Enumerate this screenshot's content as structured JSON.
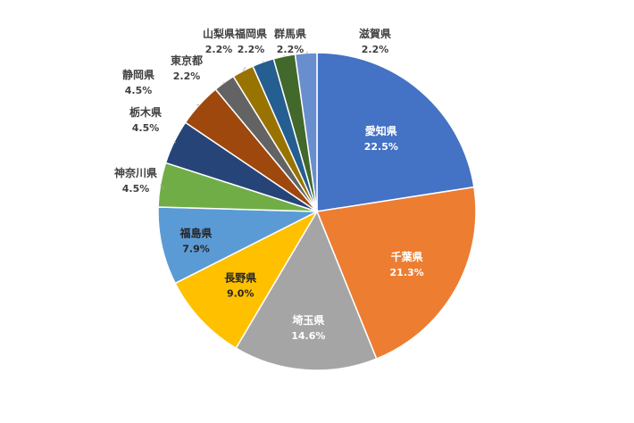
{
  "chart_data": {
    "type": "pie",
    "start_angle_deg": 0,
    "direction": "clockwise",
    "slices": [
      {
        "label": "愛知県",
        "value": 22.5,
        "display": "22.5%",
        "color": "#4472C4",
        "label_style": "inside-white"
      },
      {
        "label": "千葉県",
        "value": 21.3,
        "display": "21.3%",
        "color": "#ED7D31",
        "label_style": "inside-white"
      },
      {
        "label": "埼玉県",
        "value": 14.6,
        "display": "14.6%",
        "color": "#A5A5A5",
        "label_style": "inside-white"
      },
      {
        "label": "長野県",
        "value": 9.0,
        "display": "9.0%",
        "color": "#FFC000",
        "label_style": "inside-dark"
      },
      {
        "label": "福島県",
        "value": 7.9,
        "display": "7.9%",
        "color": "#5B9BD5",
        "label_style": "inside-dark"
      },
      {
        "label": "神奈川県",
        "value": 4.5,
        "display": "4.5%",
        "color": "#70AD47",
        "label_style": "outside"
      },
      {
        "label": "栃木県",
        "value": 4.5,
        "display": "4.5%",
        "color": "#264478",
        "label_style": "outside"
      },
      {
        "label": "静岡県",
        "value": 4.5,
        "display": "4.5%",
        "color": "#9E480E",
        "label_style": "outside"
      },
      {
        "label": "東京都",
        "value": 2.2,
        "display": "2.2%",
        "color": "#636363",
        "label_style": "outside"
      },
      {
        "label": "山梨県",
        "value": 2.2,
        "display": "2.2%",
        "color": "#997300",
        "label_style": "outside"
      },
      {
        "label": "福岡県",
        "value": 2.2,
        "display": "2.2%",
        "color": "#255E91",
        "label_style": "outside"
      },
      {
        "label": "群馬県",
        "value": 2.2,
        "display": "2.2%",
        "color": "#43682B",
        "label_style": "outside"
      },
      {
        "label": "滋賀県",
        "value": 2.2,
        "display": "2.2%",
        "color": "#698ED0",
        "label_style": "outside"
      }
    ],
    "title": "",
    "legend": "none"
  }
}
